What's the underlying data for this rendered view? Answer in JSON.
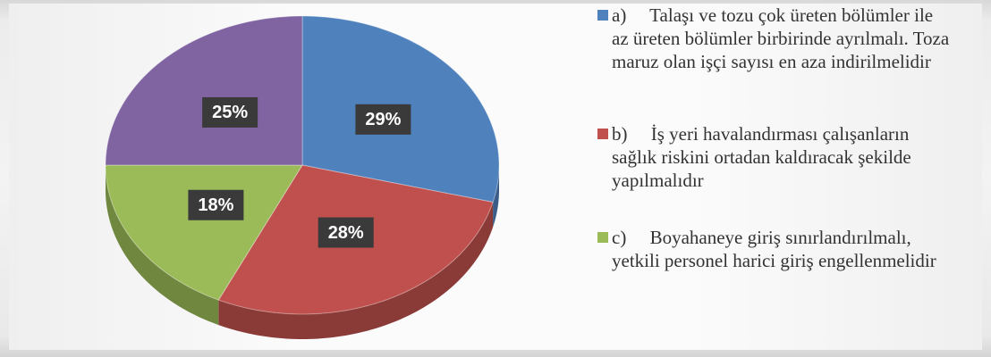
{
  "chart_data": {
    "type": "pie",
    "categories": [
      "a)     Talaşı ve tozu çok üreten bölümler ile az üreten bölümler birbirinde ayrılmalı. Toza maruz olan işçi sayısı en aza indirilmelidir",
      "b)     İş yeri havalandırması çalışanların sağlık riskini ortadan kaldıracak şekilde yapılmalıdır",
      "c)     Boyahaneye giriş sınırlandırılmalı, yetkili personel harici giriş engellenmelidir",
      null
    ],
    "values": [
      29,
      28,
      18,
      25
    ],
    "value_labels": [
      "29%",
      "28%",
      "18%",
      "25%"
    ],
    "colors": [
      "#4f81bd",
      "#c0504d",
      "#9bbb59",
      "#8064a2"
    ]
  }
}
